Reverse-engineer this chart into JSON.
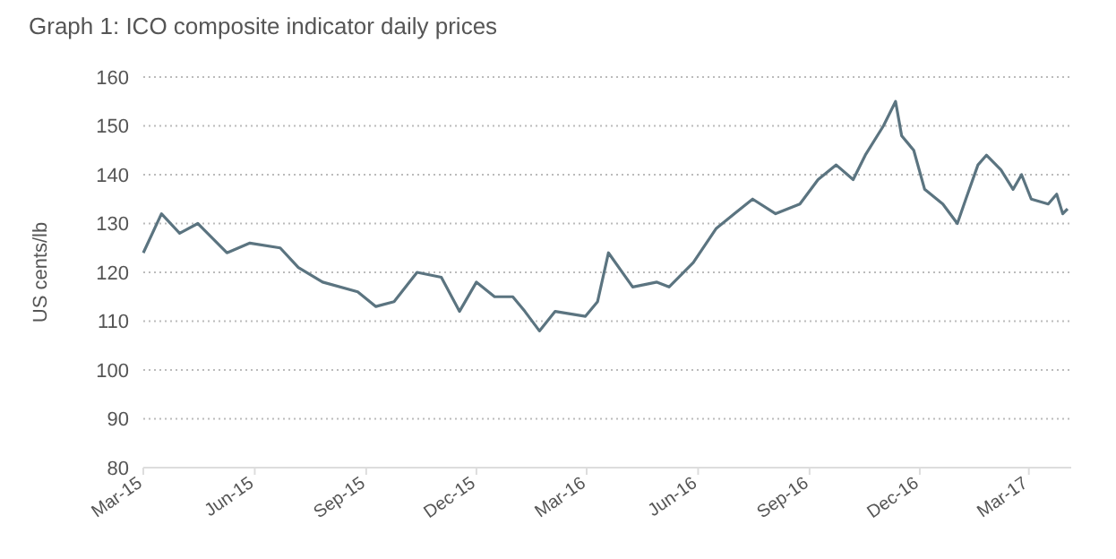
{
  "chart_data": {
    "type": "line",
    "title": "Graph 1: ICO composite indicator daily prices",
    "ylabel": "US cents/lb",
    "x": [
      "2015-03-01",
      "2015-03-16",
      "2015-03-31",
      "2015-04-15",
      "2015-05-09",
      "2015-05-28",
      "2015-06-22",
      "2015-07-07",
      "2015-07-27",
      "2015-08-25",
      "2015-09-09",
      "2015-09-24",
      "2015-10-13",
      "2015-11-02",
      "2015-11-17",
      "2015-12-01",
      "2015-12-16",
      "2015-12-31",
      "2016-01-10",
      "2016-01-22",
      "2016-02-04",
      "2016-02-29",
      "2016-03-10",
      "2016-03-19",
      "2016-04-08",
      "2016-04-28",
      "2016-05-08",
      "2016-05-28",
      "2016-06-16",
      "2016-07-01",
      "2016-07-16",
      "2016-08-04",
      "2016-08-24",
      "2016-09-08",
      "2016-09-23",
      "2016-10-07",
      "2016-10-17",
      "2016-11-01",
      "2016-11-11",
      "2016-11-16",
      "2016-11-26",
      "2016-12-05",
      "2016-12-20",
      "2017-01-01",
      "2017-01-08",
      "2017-01-18",
      "2017-01-25",
      "2017-02-06",
      "2017-02-16",
      "2017-02-23",
      "2017-03-03",
      "2017-03-17",
      "2017-03-24",
      "2017-03-29",
      "2017-04-02"
    ],
    "series": [
      {
        "color": "#5b7480",
        "values": [
          124,
          132,
          128,
          130,
          124,
          126,
          125,
          121,
          118,
          116,
          113,
          114,
          120,
          119,
          112,
          118,
          115,
          115,
          112,
          108,
          112,
          111,
          114,
          124,
          117,
          118,
          117,
          122,
          129,
          132,
          135,
          132,
          134,
          139,
          142,
          139,
          144,
          150,
          155,
          148,
          145,
          137,
          134,
          130,
          135,
          142,
          144,
          141,
          137,
          140,
          135,
          134,
          136,
          132,
          133
        ]
      }
    ],
    "xlim": [
      "2015-03-01",
      "2017-04-05"
    ],
    "xticks": [
      {
        "value": "2015-03-01",
        "label": "Mar-15"
      },
      {
        "value": "2015-06-01",
        "label": "Jun-15"
      },
      {
        "value": "2015-09-01",
        "label": "Sep-15"
      },
      {
        "value": "2015-12-01",
        "label": "Dec-15"
      },
      {
        "value": "2016-03-01",
        "label": "Mar-16"
      },
      {
        "value": "2016-06-01",
        "label": "Jun-16"
      },
      {
        "value": "2016-09-01",
        "label": "Sep-16"
      },
      {
        "value": "2016-12-01",
        "label": "Dec-16"
      },
      {
        "value": "2017-03-01",
        "label": "Mar-17"
      }
    ],
    "ylim": [
      80,
      160
    ],
    "yticks": [
      80,
      90,
      100,
      110,
      120,
      130,
      140,
      150,
      160
    ],
    "grid": "y"
  }
}
